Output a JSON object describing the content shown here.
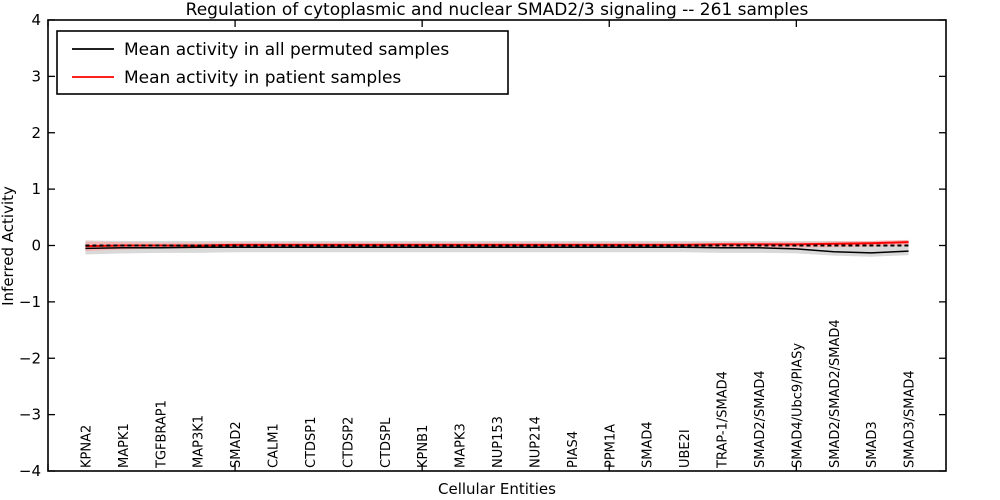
{
  "title": "Regulation of cytoplasmic and nuclear SMAD2/3 signaling -- 261 samples",
  "axes": {
    "xlabel": "Cellular Entities",
    "ylabel": "Inferred Activity"
  },
  "legend": {
    "entries": [
      {
        "label": "Mean activity in all permuted samples",
        "color": "#000000"
      },
      {
        "label": "Mean activity in patient samples",
        "color": "#ff0000"
      }
    ]
  },
  "chart_data": {
    "type": "line",
    "title": "Regulation of cytoplasmic and nuclear SMAD2/3 signaling -- 261 samples",
    "xlabel": "Cellular Entities",
    "ylabel": "Inferred Activity",
    "ylim": [
      -4,
      4
    ],
    "yticks": [
      4,
      3,
      2,
      1,
      0,
      -1,
      -2,
      -3,
      -4
    ],
    "xticks": [
      0,
      5,
      10,
      15,
      20
    ],
    "grid": false,
    "legend_position": "upper left",
    "zero_line": {
      "y": 0,
      "style": "dashed",
      "color": "#000000"
    },
    "categories": [
      "KPNA2",
      "MAPK1",
      "TGFBRAP1",
      "MAP3K1",
      "SMAD2",
      "CALM1",
      "CTDSP1",
      "CTDSP2",
      "CTDSPL",
      "KPNB1",
      "MAPK3",
      "NUP153",
      "NUP214",
      "PIAS4",
      "PPM1A",
      "SMAD4",
      "UBE2I",
      "TRAP-1/SMAD4",
      "SMAD2/SMAD4",
      "SMAD4/Ubc9/PIASy",
      "SMAD2/SMAD2/SMAD4",
      "SMAD3",
      "SMAD3/SMAD4"
    ],
    "series": [
      {
        "name": "Mean activity in all permuted samples",
        "color": "#000000",
        "values": [
          -0.05,
          -0.04,
          -0.04,
          -0.03,
          -0.03,
          -0.03,
          -0.03,
          -0.03,
          -0.03,
          -0.03,
          -0.03,
          -0.03,
          -0.03,
          -0.03,
          -0.03,
          -0.03,
          -0.03,
          -0.04,
          -0.04,
          -0.06,
          -0.11,
          -0.13,
          -0.1
        ]
      },
      {
        "name": "Mean activity in patient samples",
        "color": "#ff0000",
        "values": [
          -0.01,
          0.0,
          0.0,
          0.0,
          0.01,
          0.01,
          0.01,
          0.01,
          0.01,
          0.01,
          0.01,
          0.01,
          0.01,
          0.01,
          0.01,
          0.01,
          0.01,
          0.02,
          0.02,
          0.02,
          0.03,
          0.04,
          0.06
        ]
      }
    ],
    "bands": [
      {
        "name": "permuted-samples-range",
        "color": "#d9d9d9",
        "upper": [
          0.09,
          0.08,
          0.08,
          0.08,
          0.08,
          0.08,
          0.08,
          0.08,
          0.08,
          0.08,
          0.08,
          0.08,
          0.08,
          0.08,
          0.08,
          0.08,
          0.08,
          0.08,
          0.08,
          0.08,
          0.08,
          0.08,
          0.09
        ],
        "lower": [
          -0.16,
          -0.14,
          -0.13,
          -0.13,
          -0.12,
          -0.12,
          -0.12,
          -0.12,
          -0.12,
          -0.12,
          -0.12,
          -0.12,
          -0.12,
          -0.12,
          -0.12,
          -0.12,
          -0.12,
          -0.13,
          -0.13,
          -0.14,
          -0.18,
          -0.2,
          -0.17
        ]
      },
      {
        "name": "patient-samples-range",
        "color": "#f3b6b6",
        "upper": [
          0.07,
          0.06,
          0.05,
          0.05,
          0.05,
          0.05,
          0.05,
          0.05,
          0.05,
          0.05,
          0.05,
          0.05,
          0.05,
          0.05,
          0.05,
          0.05,
          0.05,
          0.05,
          0.06,
          0.06,
          0.07,
          0.08,
          0.1
        ],
        "lower": [
          -0.1,
          -0.07,
          -0.05,
          -0.05,
          -0.04,
          -0.04,
          -0.04,
          -0.04,
          -0.04,
          -0.04,
          -0.04,
          -0.04,
          -0.04,
          -0.04,
          -0.04,
          -0.04,
          -0.04,
          -0.04,
          -0.04,
          -0.04,
          -0.03,
          -0.02,
          0.0
        ]
      }
    ]
  },
  "colors": {
    "frame": "#000000",
    "background": "#ffffff",
    "patient_line": "#ff0000",
    "permuted_line": "#000000",
    "permuted_band": "#d9d9d9",
    "patient_band": "#f3b6b6"
  }
}
